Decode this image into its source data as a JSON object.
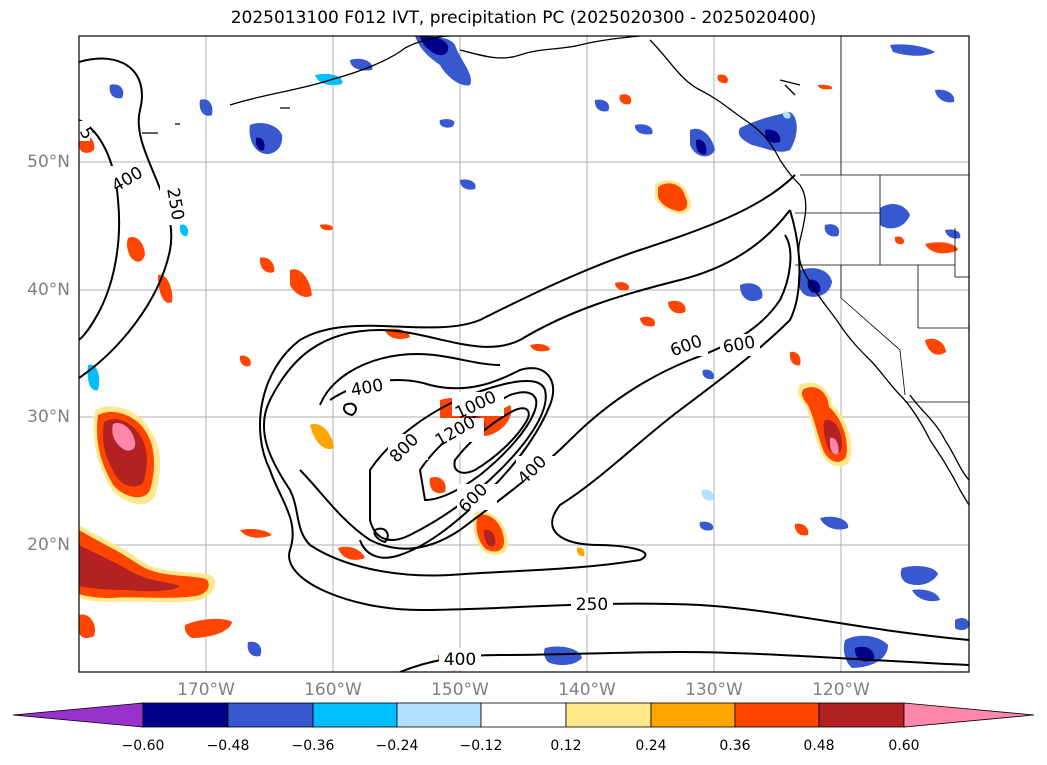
{
  "title": "2025013100 F012 IVT, precipitation PC (2025020300 - 2025020400)",
  "lat_labels": [
    "50°N",
    "40°N",
    "30°N",
    "20°N"
  ],
  "lon_labels": [
    "170°W",
    "160°W",
    "150°W",
    "140°W",
    "130°W",
    "120°W"
  ],
  "ivt_contour_labels": [
    "250",
    "400",
    "5",
    "400",
    "800",
    "1000",
    "1200",
    "400",
    "600",
    "600",
    "600",
    "250",
    "400"
  ],
  "colorbar": {
    "ticks": [
      "−0.60",
      "−0.48",
      "−0.36",
      "−0.24",
      "−0.12",
      "0.12",
      "0.24",
      "0.36",
      "0.48",
      "0.60"
    ],
    "colors": [
      "#9932cc",
      "#00008b",
      "#3858d0",
      "#00bfff",
      "#b0e2ff",
      "#ffffff",
      "#ffe88c",
      "#ffa500",
      "#ff4500",
      "#b22222",
      "#ff88aa"
    ]
  }
}
